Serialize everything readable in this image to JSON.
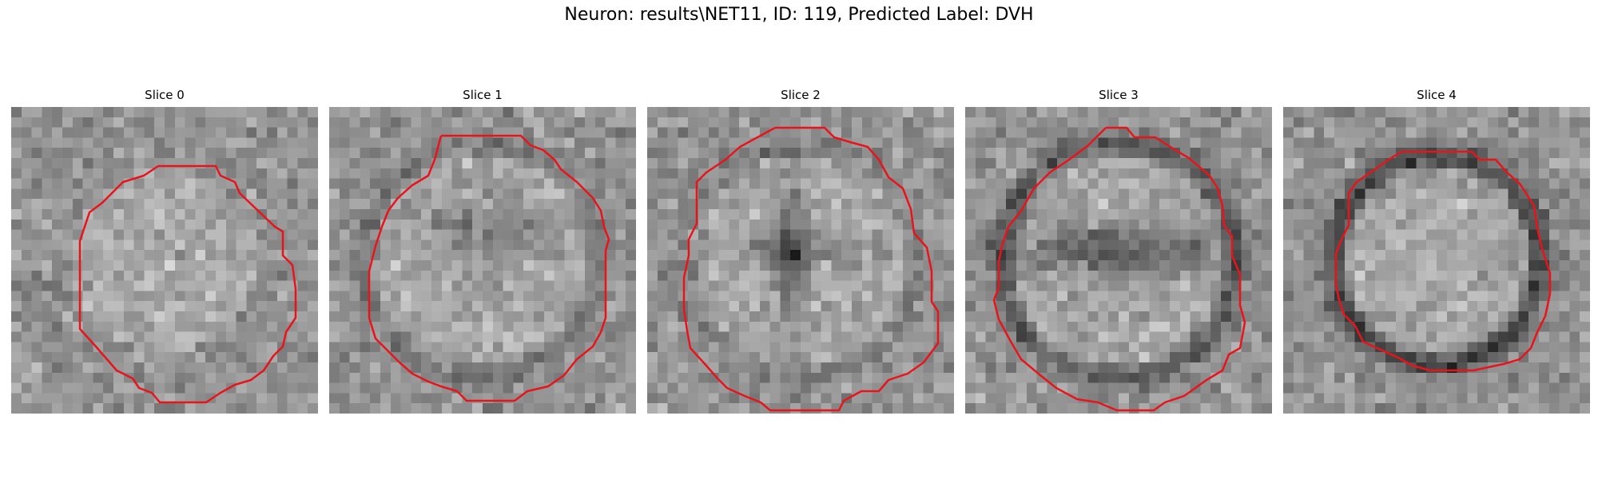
{
  "figure": {
    "title": "Neuron: results\\NET11, ID: 119, Predicted Label: DVH"
  },
  "colors": {
    "contour": "#e8141b",
    "background": "#ffffff"
  },
  "panels": [
    {
      "title": "Slice 0",
      "ring": "bright",
      "center_feature": "none"
    },
    {
      "title": "Slice 1",
      "ring": "medium",
      "center_feature": "dark-cluster"
    },
    {
      "title": "Slice 2",
      "ring": "light",
      "center_feature": "dark-cross"
    },
    {
      "title": "Slice 3",
      "ring": "dark",
      "center_feature": "dark-band"
    },
    {
      "title": "Slice 4",
      "ring": "very-dark",
      "center_feature": "none"
    }
  ]
}
